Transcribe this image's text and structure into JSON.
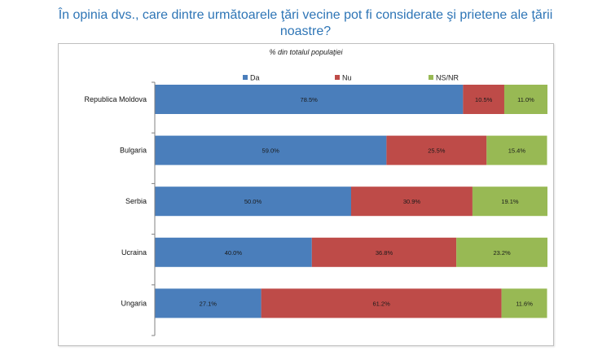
{
  "title": "În opinia dvs., care dintre următoarele ţări vecine pot fi considerate şi prietene ale ţării noastre?",
  "colors": {
    "Da": "#4a7ebb",
    "Nu": "#be4b48",
    "NS/NR": "#98b954",
    "axis": "#808080",
    "title": "#2e75b6"
  },
  "chart_data": {
    "type": "bar",
    "orientation": "horizontal",
    "stacked": true,
    "subtitle": "% din totalul populaţiei",
    "categories": [
      "Republica Moldova",
      "Bulgaria",
      "Serbia",
      "Ucraina",
      "Ungaria"
    ],
    "series": [
      {
        "name": "Da",
        "values": [
          78.5,
          59.0,
          50.0,
          40.0,
          27.1
        ],
        "labels": [
          "78.5%",
          "59.0%",
          "50.0%",
          "40.0%",
          "27.1%"
        ]
      },
      {
        "name": "Nu",
        "values": [
          10.5,
          25.5,
          30.9,
          36.8,
          61.2
        ],
        "labels": [
          "10.5%",
          "25.5%",
          "30.9%",
          "36.8%",
          "61.2%"
        ]
      },
      {
        "name": "NS/NR",
        "values": [
          11.0,
          15.4,
          19.1,
          23.2,
          11.6
        ],
        "labels": [
          "11.0%",
          "15.4%",
          "19.1%",
          "23.2%",
          "11.6%"
        ]
      }
    ],
    "xlim": [
      0,
      100
    ],
    "legend_position": "top",
    "grid": false
  }
}
